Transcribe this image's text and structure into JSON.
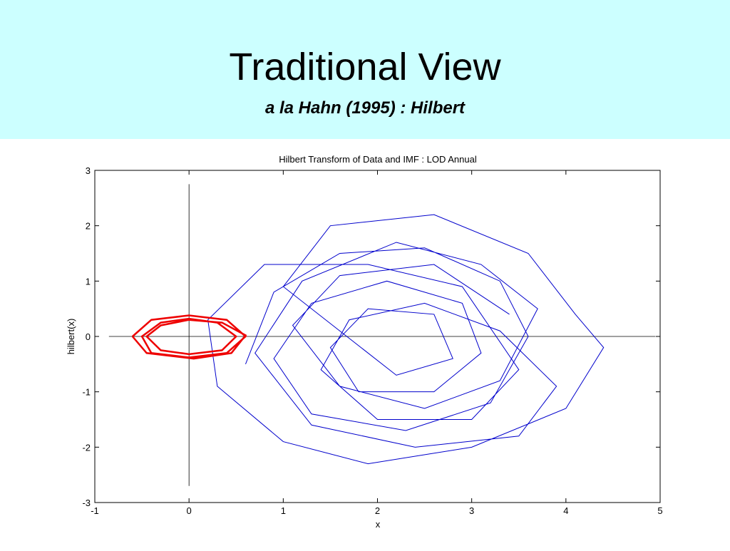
{
  "slide": {
    "title": "Traditional View",
    "subtitle": "a la Hahn  (1995) : Hilbert"
  },
  "chart_data": {
    "type": "line",
    "title": "Hilbert Transform of Data and IMF : LOD Annual",
    "xlabel": "x",
    "ylabel": "hilbert(x)",
    "xlim": [
      -1,
      5
    ],
    "ylim": [
      -3,
      3
    ],
    "xticks": [
      -1,
      0,
      1,
      2,
      3,
      4,
      5
    ],
    "yticks": [
      -3,
      -2,
      -1,
      0,
      1,
      2,
      3
    ],
    "zero_lines": true,
    "series": [
      {
        "color": "#0000cc",
        "x": [
          0.6,
          0.9,
          1.6,
          2.5,
          3.3,
          3.6,
          3.2,
          2.3,
          1.3,
          0.9,
          1.3,
          2.1,
          2.9,
          3.1,
          2.6,
          1.8,
          1.5,
          1.9,
          2.6,
          2.8,
          2.2,
          1.0,
          1.5,
          2.6,
          3.6,
          4.1,
          4.4,
          4.0,
          3.0,
          1.9,
          1.0,
          0.3,
          0.2,
          0.8,
          1.9,
          2.9,
          3.5,
          3.0,
          2.0,
          1.4,
          1.7,
          2.5,
          3.3,
          3.9,
          3.5,
          2.4,
          1.3,
          0.7,
          1.2,
          2.2,
          3.1,
          3.7,
          3.3,
          2.5,
          1.6,
          1.1,
          1.6,
          2.6,
          3.4
        ],
        "values": [
          -0.5,
          0.8,
          1.5,
          1.6,
          1.0,
          0.0,
          -1.2,
          -1.7,
          -1.4,
          -0.4,
          0.6,
          1.0,
          0.6,
          -0.3,
          -1.0,
          -1.0,
          -0.2,
          0.5,
          0.4,
          -0.4,
          -0.7,
          0.9,
          2.0,
          2.2,
          1.5,
          0.4,
          -0.2,
          -1.3,
          -2.0,
          -2.3,
          -1.9,
          -0.9,
          0.3,
          1.3,
          1.3,
          0.9,
          -0.6,
          -1.5,
          -1.5,
          -0.6,
          0.3,
          0.6,
          0.1,
          -0.9,
          -1.8,
          -2.0,
          -1.6,
          -0.3,
          1.0,
          1.7,
          1.3,
          0.5,
          -0.8,
          -1.3,
          -0.9,
          0.2,
          1.1,
          1.3,
          0.4
        ]
      },
      {
        "color": "#ee0000",
        "x": [
          -0.6,
          -0.4,
          0,
          0.4,
          0.6,
          0.4,
          0,
          -0.4,
          -0.5,
          -0.3,
          0,
          0.3,
          0.5,
          0.35,
          0,
          -0.3,
          -0.45,
          -0.3,
          0,
          0.35,
          0.6,
          0.45,
          0.05,
          -0.45,
          -0.6
        ],
        "values": [
          0,
          0.3,
          0.38,
          0.3,
          0,
          -0.3,
          -0.38,
          -0.3,
          0,
          0.25,
          0.32,
          0.25,
          0,
          -0.25,
          -0.32,
          -0.25,
          0,
          0.2,
          0.3,
          0.25,
          0.02,
          -0.3,
          -0.4,
          -0.3,
          0
        ]
      }
    ]
  }
}
